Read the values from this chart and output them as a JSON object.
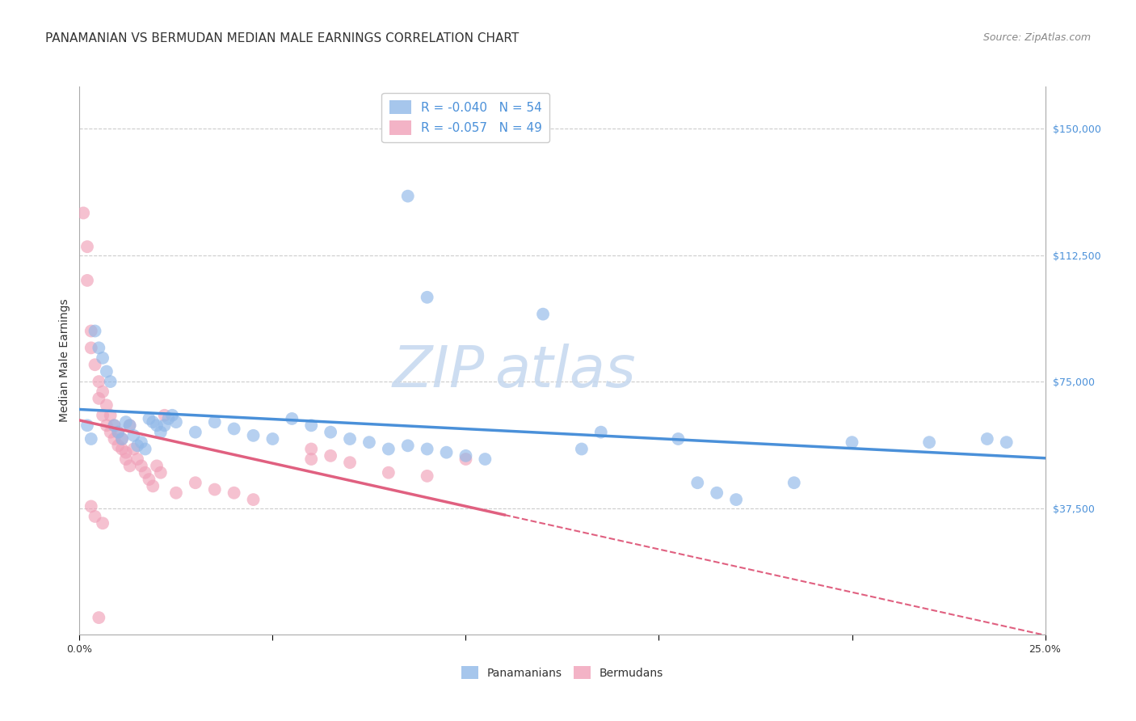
{
  "title": "PANAMANIAN VS BERMUDAN MEDIAN MALE EARNINGS CORRELATION CHART",
  "source": "Source: ZipAtlas.com",
  "ylabel": "Median Male Earnings",
  "ytick_labels": [
    "$37,500",
    "$75,000",
    "$112,500",
    "$150,000"
  ],
  "ytick_values": [
    37500,
    75000,
    112500,
    150000
  ],
  "ymin": 0,
  "ymax": 162500,
  "xmin": 0.0,
  "xmax": 0.25,
  "legend_R_blue": "R = -0.040",
  "legend_N_blue": "N = 54",
  "legend_R_pink": "R = -0.057",
  "legend_N_pink": "N = 49",
  "bottom_legend_blue": "Panamanians",
  "bottom_legend_pink": "Bermudans",
  "watermark_zip": "ZIP",
  "watermark_atlas": "atlas",
  "blue_scatter": [
    [
      0.002,
      62000
    ],
    [
      0.003,
      58000
    ],
    [
      0.004,
      90000
    ],
    [
      0.005,
      85000
    ],
    [
      0.006,
      82000
    ],
    [
      0.007,
      78000
    ],
    [
      0.008,
      75000
    ],
    [
      0.009,
      62000
    ],
    [
      0.01,
      60000
    ],
    [
      0.011,
      58000
    ],
    [
      0.012,
      63000
    ],
    [
      0.013,
      62000
    ],
    [
      0.014,
      59000
    ],
    [
      0.015,
      56000
    ],
    [
      0.016,
      57000
    ],
    [
      0.017,
      55000
    ],
    [
      0.018,
      64000
    ],
    [
      0.019,
      63000
    ],
    [
      0.02,
      62000
    ],
    [
      0.021,
      60000
    ],
    [
      0.022,
      62000
    ],
    [
      0.023,
      64000
    ],
    [
      0.024,
      65000
    ],
    [
      0.025,
      63000
    ],
    [
      0.03,
      60000
    ],
    [
      0.035,
      63000
    ],
    [
      0.04,
      61000
    ],
    [
      0.045,
      59000
    ],
    [
      0.05,
      58000
    ],
    [
      0.055,
      64000
    ],
    [
      0.06,
      62000
    ],
    [
      0.065,
      60000
    ],
    [
      0.07,
      58000
    ],
    [
      0.075,
      57000
    ],
    [
      0.08,
      55000
    ],
    [
      0.085,
      56000
    ],
    [
      0.09,
      55000
    ],
    [
      0.095,
      54000
    ],
    [
      0.1,
      53000
    ],
    [
      0.105,
      52000
    ],
    [
      0.085,
      130000
    ],
    [
      0.09,
      100000
    ],
    [
      0.12,
      95000
    ],
    [
      0.13,
      55000
    ],
    [
      0.135,
      60000
    ],
    [
      0.155,
      58000
    ],
    [
      0.16,
      45000
    ],
    [
      0.165,
      42000
    ],
    [
      0.17,
      40000
    ],
    [
      0.185,
      45000
    ],
    [
      0.2,
      57000
    ],
    [
      0.22,
      57000
    ],
    [
      0.235,
      58000
    ],
    [
      0.24,
      57000
    ]
  ],
  "pink_scatter": [
    [
      0.001,
      125000
    ],
    [
      0.002,
      115000
    ],
    [
      0.002,
      105000
    ],
    [
      0.003,
      90000
    ],
    [
      0.003,
      85000
    ],
    [
      0.004,
      80000
    ],
    [
      0.005,
      75000
    ],
    [
      0.005,
      70000
    ],
    [
      0.006,
      65000
    ],
    [
      0.006,
      72000
    ],
    [
      0.007,
      68000
    ],
    [
      0.007,
      62000
    ],
    [
      0.008,
      60000
    ],
    [
      0.008,
      65000
    ],
    [
      0.009,
      58000
    ],
    [
      0.009,
      62000
    ],
    [
      0.01,
      60000
    ],
    [
      0.01,
      56000
    ],
    [
      0.011,
      58000
    ],
    [
      0.011,
      55000
    ],
    [
      0.012,
      54000
    ],
    [
      0.012,
      52000
    ],
    [
      0.013,
      62000
    ],
    [
      0.013,
      50000
    ],
    [
      0.014,
      55000
    ],
    [
      0.015,
      52000
    ],
    [
      0.016,
      50000
    ],
    [
      0.017,
      48000
    ],
    [
      0.018,
      46000
    ],
    [
      0.019,
      44000
    ],
    [
      0.02,
      50000
    ],
    [
      0.021,
      48000
    ],
    [
      0.022,
      65000
    ],
    [
      0.025,
      42000
    ],
    [
      0.03,
      45000
    ],
    [
      0.035,
      43000
    ],
    [
      0.04,
      42000
    ],
    [
      0.045,
      40000
    ],
    [
      0.06,
      55000
    ],
    [
      0.06,
      52000
    ],
    [
      0.065,
      53000
    ],
    [
      0.07,
      51000
    ],
    [
      0.08,
      48000
    ],
    [
      0.09,
      47000
    ],
    [
      0.1,
      52000
    ],
    [
      0.005,
      5000
    ],
    [
      0.003,
      38000
    ],
    [
      0.004,
      35000
    ],
    [
      0.006,
      33000
    ]
  ],
  "blue_line_color": "#4a90d9",
  "pink_line_color": "#e06080",
  "scatter_blue_color": "#90b8e8",
  "scatter_pink_color": "#f0a0b8",
  "title_fontsize": 11,
  "source_fontsize": 9,
  "axis_label_fontsize": 10,
  "tick_fontsize": 9,
  "grid_color": "#cccccc",
  "background_color": "#ffffff"
}
